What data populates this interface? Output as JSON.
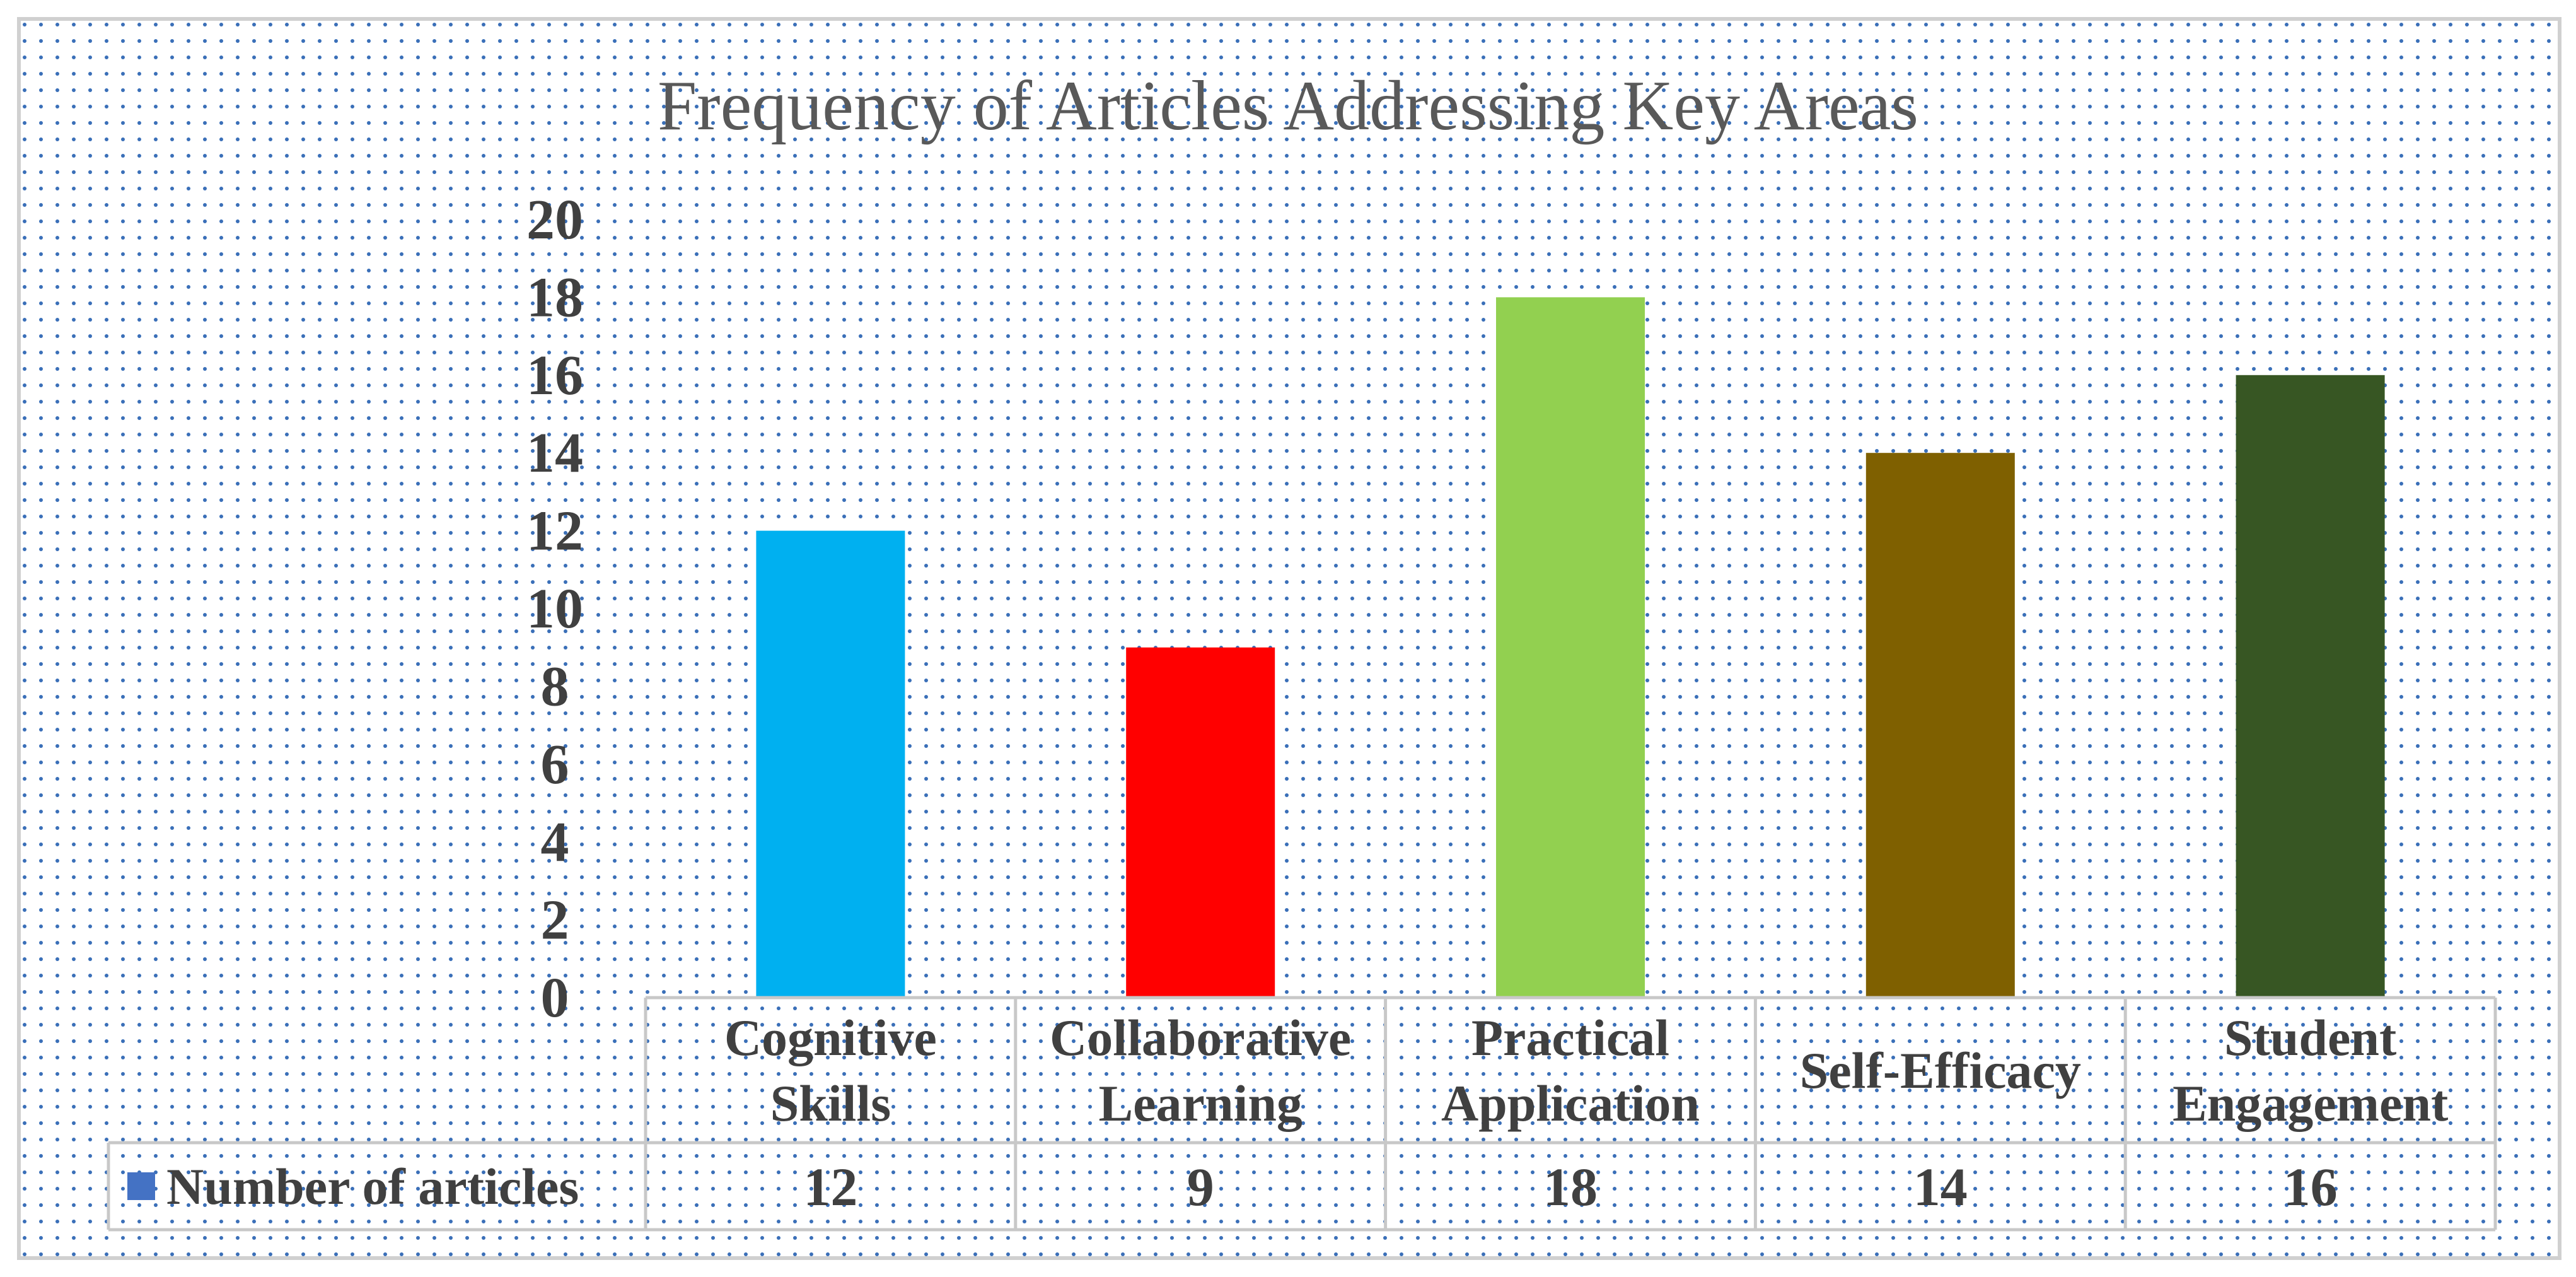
{
  "chart_data": {
    "type": "bar",
    "title": "Frequency of Articles Addressing Key Areas",
    "categories": [
      [
        "Cognitive",
        "Skills"
      ],
      [
        "Collaborative",
        "Learning"
      ],
      [
        "Practical",
        "Application"
      ],
      [
        "Self-Efficacy"
      ],
      [
        "Student",
        "Engagement"
      ]
    ],
    "series": [
      {
        "name": "Number of articles",
        "values": [
          12,
          9,
          18,
          14,
          16
        ],
        "colors": [
          "#00b0f0",
          "#ff0000",
          "#92d050",
          "#7f6000",
          "#375623"
        ]
      }
    ],
    "legend_marker_color": "#4472c4",
    "ylim": [
      0,
      20
    ],
    "yticks": [
      "0",
      "2",
      "4",
      "6",
      "8",
      "10",
      "12",
      "14",
      "16",
      "18",
      "20"
    ],
    "table_values": [
      "12",
      "9",
      "18",
      "14",
      "16"
    ],
    "xlabel": "",
    "ylabel": "",
    "grid": false,
    "background_pattern_color": "#3a6fb8",
    "legend_position": "data-table"
  }
}
